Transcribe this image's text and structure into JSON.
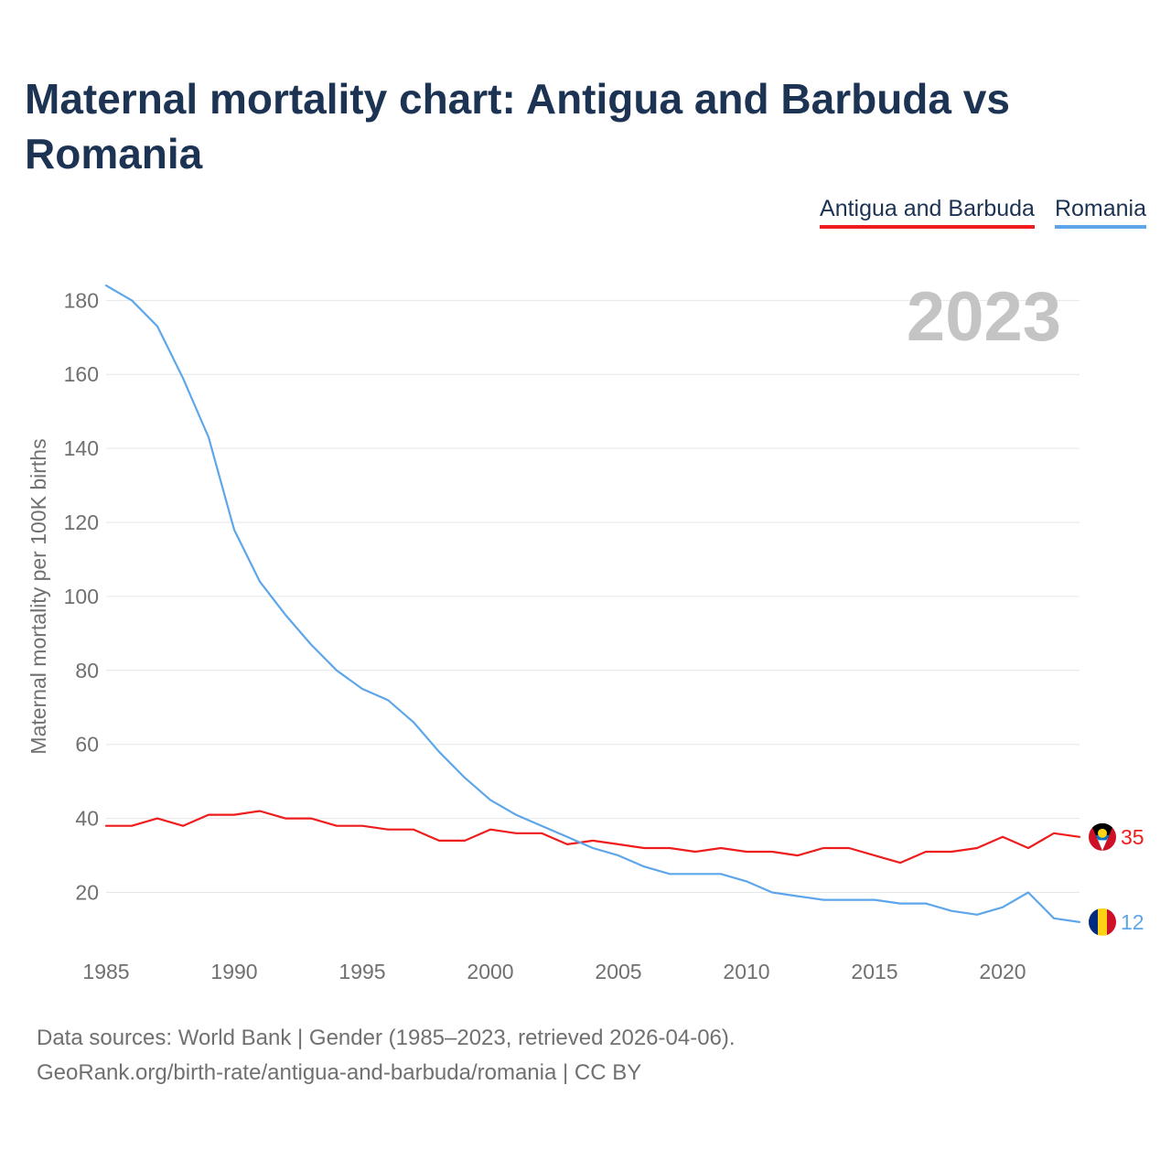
{
  "title": "Maternal mortality chart: Antigua and Barbuda vs Romania",
  "legend": [
    {
      "name": "Antigua and Barbuda",
      "color": "#ee1c1c"
    },
    {
      "name": "Romania",
      "color": "#5ea6ea"
    }
  ],
  "year_label": "2023",
  "footer": {
    "line1": "Data sources: World Bank | Gender (1985–2023, retrieved 2026-04-06).",
    "line2": "GeoRank.org/birth-rate/antigua-and-barbuda/romania | CC BY"
  },
  "chart_data": {
    "type": "line",
    "title": "Maternal mortality chart: Antigua and Barbuda vs Romania",
    "xlabel": "",
    "ylabel": "Maternal mortality per 100K births",
    "xlim": [
      1985,
      2023
    ],
    "ylim": [
      9,
      187
    ],
    "yticks": [
      20,
      40,
      60,
      80,
      100,
      120,
      140,
      160,
      180
    ],
    "xticks": [
      1985,
      1990,
      1995,
      2000,
      2005,
      2010,
      2015,
      2020
    ],
    "x": [
      1985,
      1986,
      1987,
      1988,
      1989,
      1990,
      1991,
      1992,
      1993,
      1994,
      1995,
      1996,
      1997,
      1998,
      1999,
      2000,
      2001,
      2002,
      2003,
      2004,
      2005,
      2006,
      2007,
      2008,
      2009,
      2010,
      2011,
      2012,
      2013,
      2014,
      2015,
      2016,
      2017,
      2018,
      2019,
      2020,
      2021,
      2022,
      2023
    ],
    "series": [
      {
        "name": "Antigua and Barbuda",
        "color": "#ee1c1c",
        "end_label": "35",
        "flag": "antigua-and-barbuda-flag",
        "values": [
          38,
          38,
          40,
          38,
          41,
          41,
          42,
          40,
          40,
          38,
          38,
          37,
          37,
          34,
          34,
          37,
          36,
          36,
          33,
          34,
          33,
          32,
          32,
          31,
          32,
          31,
          31,
          30,
          32,
          32,
          30,
          28,
          31,
          31,
          32,
          35,
          32,
          36,
          35
        ]
      },
      {
        "name": "Romania",
        "color": "#5ea6ea",
        "end_label": "12",
        "flag": "romania-flag",
        "values": [
          184,
          180,
          173,
          159,
          143,
          118,
          104,
          95,
          87,
          80,
          75,
          72,
          66,
          58,
          51,
          45,
          41,
          38,
          35,
          32,
          30,
          27,
          25,
          25,
          25,
          23,
          20,
          19,
          18,
          18,
          18,
          17,
          17,
          15,
          14,
          16,
          20,
          13,
          12
        ]
      }
    ]
  }
}
